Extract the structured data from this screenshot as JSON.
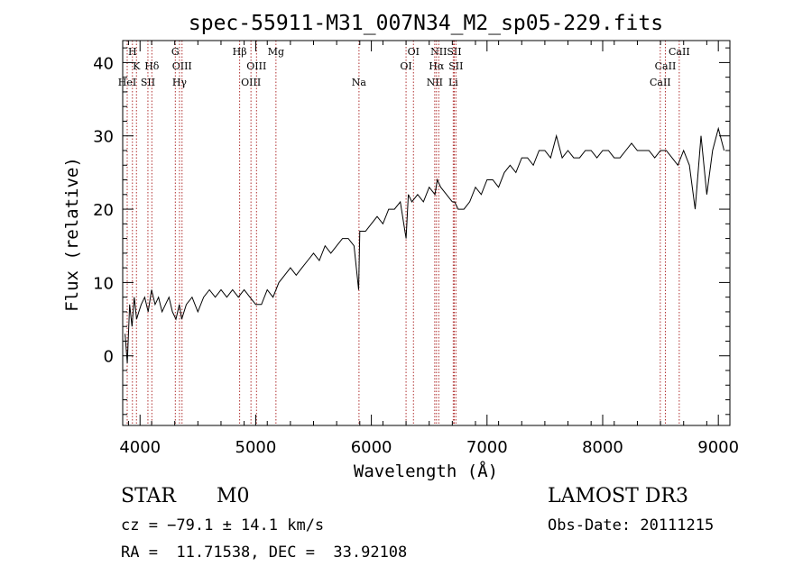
{
  "chart_data": {
    "type": "line",
    "title": "spec-55911-M31_007N34_M2_sp05-229.fits",
    "xlabel": "Wavelength (Å)",
    "ylabel": "Flux (relative)",
    "xlim": [
      3850,
      9100
    ],
    "ylim": [
      -9.5,
      43
    ],
    "xticks": [
      4000,
      5000,
      6000,
      7000,
      8000,
      9000
    ],
    "yticks": [
      0,
      10,
      20,
      30,
      40
    ],
    "series": [
      {
        "name": "spectrum",
        "x": [
          3870,
          3890,
          3910,
          3930,
          3950,
          3970,
          3990,
          4010,
          4040,
          4070,
          4100,
          4130,
          4160,
          4190,
          4220,
          4250,
          4280,
          4310,
          4340,
          4360,
          4400,
          4450,
          4500,
          4550,
          4600,
          4650,
          4700,
          4750,
          4800,
          4850,
          4900,
          4950,
          5000,
          5050,
          5100,
          5150,
          5200,
          5250,
          5300,
          5350,
          5400,
          5450,
          5500,
          5550,
          5600,
          5650,
          5700,
          5750,
          5800,
          5850,
          5890,
          5900,
          5950,
          6000,
          6050,
          6100,
          6150,
          6200,
          6250,
          6300,
          6320,
          6350,
          6400,
          6450,
          6500,
          6550,
          6570,
          6600,
          6650,
          6700,
          6720,
          6750,
          6800,
          6850,
          6900,
          6950,
          7000,
          7050,
          7100,
          7150,
          7200,
          7250,
          7300,
          7350,
          7400,
          7450,
          7500,
          7550,
          7600,
          7650,
          7700,
          7750,
          7800,
          7850,
          7900,
          7950,
          8000,
          8050,
          8100,
          8150,
          8200,
          8250,
          8300,
          8350,
          8400,
          8450,
          8500,
          8550,
          8600,
          8650,
          8700,
          8750,
          8800,
          8850,
          8900,
          8950,
          9000,
          9050
        ],
        "y": [
          3,
          -1,
          7,
          4,
          8,
          5,
          6,
          7,
          8,
          6,
          9,
          7,
          8,
          6,
          7,
          8,
          6,
          5,
          7,
          5,
          7,
          8,
          6,
          8,
          9,
          8,
          9,
          8,
          9,
          8,
          9,
          8,
          7,
          7,
          9,
          8,
          10,
          11,
          12,
          11,
          12,
          13,
          14,
          13,
          15,
          14,
          15,
          16,
          16,
          15,
          9,
          17,
          17,
          18,
          19,
          18,
          20,
          20,
          21,
          16,
          22,
          21,
          22,
          21,
          23,
          22,
          24,
          23,
          22,
          21,
          21,
          20,
          20,
          21,
          23,
          22,
          24,
          24,
          23,
          25,
          26,
          25,
          27,
          27,
          26,
          28,
          28,
          27,
          30,
          27,
          28,
          27,
          27,
          28,
          28,
          27,
          28,
          28,
          27,
          27,
          28,
          29,
          28,
          28,
          28,
          27,
          28,
          28,
          27,
          26,
          28,
          26,
          20,
          30,
          22,
          28,
          31,
          28
        ]
      }
    ],
    "lines": [
      {
        "label": "H",
        "x": 3934,
        "row": 1
      },
      {
        "label": "K",
        "x": 3969,
        "row": 2
      },
      {
        "label": "HeI",
        "x": 3889,
        "row": 3
      },
      {
        "label": "SII",
        "x": 4068,
        "row": 3
      },
      {
        "label": "Hδ",
        "x": 4102,
        "row": 2
      },
      {
        "label": "G",
        "x": 4305,
        "row": 1
      },
      {
        "label": "OIII",
        "x": 4363,
        "row": 2
      },
      {
        "label": "Hγ",
        "x": 4341,
        "row": 3
      },
      {
        "label": "Hβ",
        "x": 4861,
        "row": 1
      },
      {
        "label": "OIII",
        "x": 5007,
        "row": 2
      },
      {
        "label": "OIII",
        "x": 4959,
        "row": 3
      },
      {
        "label": "Mg",
        "x": 5175,
        "row": 1
      },
      {
        "label": "Na",
        "x": 5893,
        "row": 3
      },
      {
        "label": "OI",
        "x": 6364,
        "row": 1
      },
      {
        "label": "OI",
        "x": 6300,
        "row": 2
      },
      {
        "label": "NII",
        "x": 6583,
        "row": 1
      },
      {
        "label": "SII",
        "x": 6717,
        "row": 1
      },
      {
        "label": "Hα",
        "x": 6563,
        "row": 2
      },
      {
        "label": "SII",
        "x": 6731,
        "row": 2
      },
      {
        "label": "NII",
        "x": 6548,
        "row": 3
      },
      {
        "label": "Li",
        "x": 6708,
        "row": 3
      },
      {
        "label": "CaII",
        "x": 8662,
        "row": 1
      },
      {
        "label": "CaII",
        "x": 8542,
        "row": 2
      },
      {
        "label": "CaII",
        "x": 8498,
        "row": 3
      }
    ],
    "colors": {
      "spectrum": "#000000",
      "line_marker": "#b03030",
      "axes": "#000000"
    }
  },
  "info": {
    "class_label": "STAR",
    "subclass_label": "M0",
    "survey": "LAMOST DR3",
    "redshift_text": "cz = −79.1 ± 14.1 km/s",
    "obs_date_text": "Obs-Date: 20111215",
    "coords_text": "RA =  11.71538, DEC =  33.92108"
  }
}
